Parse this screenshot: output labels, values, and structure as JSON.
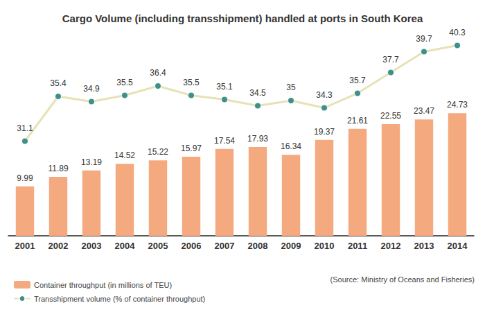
{
  "chart_data": {
    "type": "bar",
    "title": "Cargo Volume (including transshipment) handled at ports in South Korea",
    "source": "(Source: Ministry of Oceans and Fisheries)",
    "categories": [
      "2001",
      "2002",
      "2003",
      "2004",
      "2005",
      "2006",
      "2007",
      "2008",
      "2009",
      "2010",
      "2011",
      "2012",
      "2013",
      "2014"
    ],
    "series": [
      {
        "name": "Container throughput (in millions of TEU)",
        "type": "bar",
        "color": "#f4a97f",
        "values": [
          9.99,
          11.89,
          13.19,
          14.52,
          15.22,
          15.97,
          17.54,
          17.93,
          16.34,
          19.37,
          21.61,
          22.55,
          23.47,
          24.73
        ]
      },
      {
        "name": "Transshipment volume (% of container throughput)",
        "type": "line",
        "axis": "y2",
        "color": "#e6e2b6",
        "marker": "circle",
        "values": [
          31.1,
          35.4,
          34.9,
          35.5,
          36.4,
          35.5,
          35.1,
          34.5,
          35,
          34.3,
          35.7,
          37.7,
          39.7,
          40.3
        ]
      }
    ],
    "ylim": [
      0,
      42
    ],
    "yticks": [
      0,
      14,
      28,
      42
    ],
    "y2lim": [
      22,
      42
    ],
    "y2ticks": [
      22,
      32,
      42
    ],
    "grid": false,
    "data_labels": true,
    "tick_labels": "x",
    "legend": "bottom-left"
  }
}
